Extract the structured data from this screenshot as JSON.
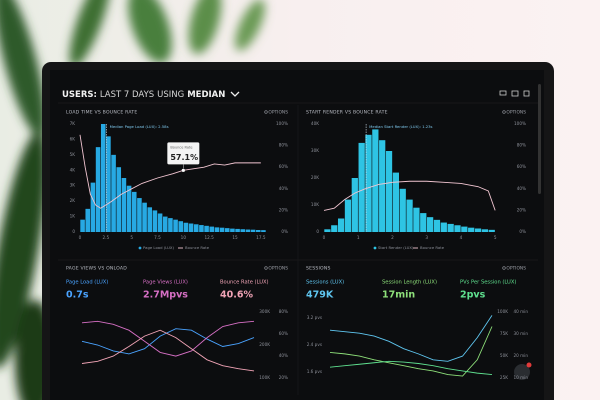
{
  "header": {
    "prefix": "USERS:",
    "range": "LAST 7 DAYS",
    "using": "USING",
    "stat": "MEDIAN"
  },
  "panels": [
    {
      "type": "histogram",
      "title": "LOAD TIME VS BOUNCE RATE",
      "options": "OPTIONS",
      "bar_name": "Page Load (LUX)",
      "bar_color": "#27a9e3",
      "xlim": [
        0,
        18
      ],
      "xticks": [
        0,
        2.5,
        5,
        7.5,
        10,
        12.5,
        15,
        17.5
      ],
      "ylim": [
        0,
        7000
      ],
      "yticks": [
        {
          "value": 0,
          "label": "0"
        },
        {
          "value": 1000,
          "label": "1K"
        },
        {
          "value": 2000,
          "label": "2K"
        },
        {
          "value": 3000,
          "label": "3K"
        },
        {
          "value": 4000,
          "label": "4K"
        },
        {
          "value": 5000,
          "label": "5K"
        },
        {
          "value": 6000,
          "label": "6K"
        },
        {
          "value": 7000,
          "label": "7K"
        }
      ],
      "y2lim": [
        0,
        100
      ],
      "y2ticks": [
        {
          "value": 0,
          "label": "0%"
        },
        {
          "value": 20,
          "label": "20%"
        },
        {
          "value": 40,
          "label": "40%"
        },
        {
          "value": 60,
          "label": "60%"
        },
        {
          "value": 80,
          "label": "80%"
        },
        {
          "value": 100,
          "label": "100%"
        }
      ],
      "bins": [
        0,
        0.5,
        1,
        1.5,
        2,
        2.5,
        3,
        3.5,
        4,
        4.5,
        5,
        5.5,
        6,
        6.5,
        7,
        7.5,
        8,
        8.5,
        9,
        9.5,
        10,
        10.5,
        11,
        11.5,
        12,
        12.5,
        13,
        13.5,
        14,
        14.5,
        15,
        15.5,
        16,
        16.5,
        17,
        17.5,
        18
      ],
      "values": [
        800,
        1500,
        3200,
        5500,
        7000,
        6200,
        5000,
        4200,
        3500,
        3000,
        2600,
        2200,
        1900,
        1600,
        1400,
        1200,
        1000,
        900,
        800,
        700,
        600,
        550,
        500,
        450,
        400,
        350,
        300,
        280,
        250,
        220,
        200,
        180,
        160,
        150,
        130,
        120
      ],
      "line": {
        "name": "Bounce Rate",
        "color": "#f2c6d2",
        "x": [
          0,
          0.5,
          1,
          1.5,
          2,
          3,
          4,
          5,
          6,
          7.5,
          9,
          10,
          12,
          13,
          14,
          15,
          16,
          17.5
        ],
        "values": [
          90,
          60,
          35,
          25,
          22,
          28,
          35,
          40,
          45,
          50,
          54,
          57.1,
          60,
          63,
          62,
          64,
          64,
          64
        ]
      },
      "median": {
        "value": 2.58,
        "label": "Median Page Load (LUX): 2.58s"
      },
      "tooltip": {
        "x": 10,
        "value": 57.1,
        "title": "Bounce Rate",
        "label": "57.1%"
      }
    },
    {
      "type": "histogram",
      "title": "START RENDER VS BOUNCE RATE",
      "options": "OPTIONS",
      "bar_name": "Start Render (LUX)",
      "bar_color": "#2ec4e4",
      "xlim": [
        0,
        5.2
      ],
      "xticks": [
        0,
        1,
        2,
        3,
        4,
        5
      ],
      "ylim": [
        0,
        40000
      ],
      "yticks": [
        {
          "value": 0,
          "label": "0"
        },
        {
          "value": 10000,
          "label": "10K"
        },
        {
          "value": 20000,
          "label": "20K"
        },
        {
          "value": 30000,
          "label": "30K"
        },
        {
          "value": 40000,
          "label": "40K"
        }
      ],
      "y2lim": [
        0,
        100
      ],
      "y2ticks": [
        {
          "value": 0,
          "label": "0%"
        },
        {
          "value": 20,
          "label": "20%"
        },
        {
          "value": 40,
          "label": "40%"
        },
        {
          "value": 60,
          "label": "60%"
        },
        {
          "value": 80,
          "label": "80%"
        },
        {
          "value": 100,
          "label": "100%"
        }
      ],
      "bins": [
        0,
        0.2,
        0.4,
        0.6,
        0.8,
        1,
        1.2,
        1.4,
        1.6,
        1.8,
        2,
        2.2,
        2.4,
        2.6,
        2.8,
        3,
        3.2,
        3.4,
        3.6,
        3.8,
        4,
        4.2,
        4.4,
        4.6,
        4.8,
        5
      ],
      "values": [
        1000,
        2500,
        5000,
        12000,
        20000,
        33000,
        36000,
        38000,
        34000,
        30000,
        22000,
        16000,
        12000,
        9000,
        7000,
        5500,
        4500,
        3500,
        3000,
        2500,
        2000,
        1600,
        1300,
        1000,
        800
      ],
      "line": {
        "name": "Bounce Rate",
        "color": "#f2c6d2",
        "x": [
          0,
          0.3,
          0.6,
          0.9,
          1.2,
          1.6,
          2,
          2.5,
          3,
          3.5,
          4,
          4.5,
          4.8,
          5
        ],
        "values": [
          20,
          22,
          30,
          36,
          40,
          44,
          46,
          47,
          47,
          46,
          45,
          42,
          38,
          20
        ]
      },
      "median": {
        "value": 1.23,
        "label": "Median Start Render (LUX): 1.23s"
      }
    },
    {
      "type": "lines",
      "title": "PAGE VIEWS VS ONLOAD",
      "options": "OPTIONS",
      "ylim": [
        0,
        100
      ],
      "metrics": [
        {
          "name": "Page Load (LUX)",
          "value": "0.7s",
          "color": "#4aa3ff",
          "values": [
            55,
            50,
            42,
            38,
            45,
            62,
            72,
            70,
            58,
            48,
            52,
            60
          ]
        },
        {
          "name": "Page Views (LUX)",
          "value": "2.7Mpvs",
          "color": "#d66fc4",
          "values": [
            80,
            82,
            78,
            70,
            55,
            40,
            35,
            42,
            60,
            75,
            80,
            82
          ]
        },
        {
          "name": "Bounce Rate (LUX)",
          "value": "40.6%",
          "color": "#f1a4b6",
          "values": [
            25,
            28,
            35,
            48,
            62,
            70,
            60,
            45,
            30,
            22,
            18,
            15
          ]
        }
      ],
      "right_ticks": [
        [
          "300K",
          "200K",
          "100K"
        ],
        [
          "80%",
          "60%",
          "40%",
          "20%"
        ]
      ]
    },
    {
      "type": "lines",
      "title": "SESSIONS",
      "options": "OPTIONS",
      "ylim": [
        0,
        100
      ],
      "metrics": [
        {
          "name": "Sessions (LUX)",
          "value": "479K",
          "color": "#5fc6f0",
          "values": [
            70,
            68,
            66,
            62,
            55,
            45,
            38,
            30,
            28,
            35,
            60,
            90
          ]
        },
        {
          "name": "Session Length (LUX)",
          "value": "17min",
          "color": "#8ee07a",
          "values": [
            40,
            38,
            35,
            30,
            26,
            22,
            18,
            15,
            10,
            8,
            30,
            75
          ]
        },
        {
          "name": "PVs Per Session (LUX)",
          "value": "2pvs",
          "color": "#5fe08f",
          "values": [
            20,
            22,
            24,
            26,
            28,
            27,
            25,
            22,
            18,
            15,
            12,
            10
          ]
        }
      ],
      "left_ticks": [
        "3.2 pvs",
        "2.4 pvs",
        "1.6 pvs"
      ],
      "right_ticks": [
        [
          "100K",
          "75K",
          "50K",
          "25K"
        ],
        [
          "40 min",
          "30 min",
          "20 min",
          "10 min"
        ]
      ]
    }
  ]
}
